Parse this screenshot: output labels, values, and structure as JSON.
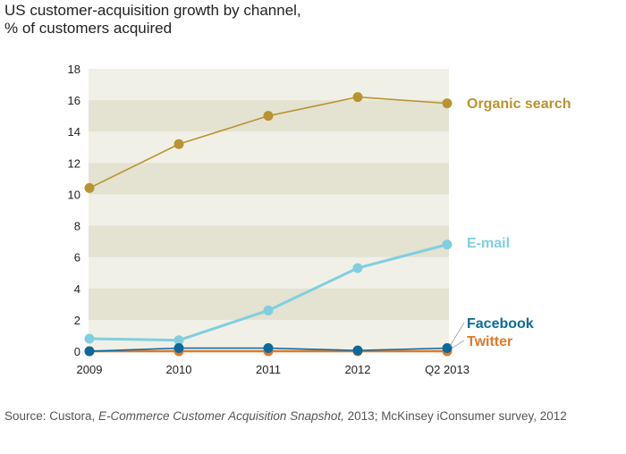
{
  "title_line1": "US customer-acquisition growth by channel,",
  "title_line2": "% of customers acquired",
  "source": {
    "prefix": "Source: Custora, ",
    "italic": "E-Commerce Customer Acquisition Snapshot,",
    "suffix": " 2013; McKinsey iConsumer survey, 2012"
  },
  "chart_data": {
    "type": "line",
    "title": "US customer-acquisition growth by channel, % of customers acquired",
    "categories": [
      "2009",
      "2010",
      "2011",
      "2012",
      "Q2 2013"
    ],
    "ylim": [
      0,
      18
    ],
    "yticks": [
      0,
      2,
      4,
      6,
      8,
      10,
      12,
      14,
      16,
      18
    ],
    "grid": "alternating horizontal bands",
    "legend": "direct labels at right",
    "series": [
      {
        "name": "Organic search",
        "color": "#b8932f",
        "values": [
          10.4,
          13.2,
          15.0,
          16.2,
          15.8
        ]
      },
      {
        "name": "E-mail",
        "color": "#7fcfe0",
        "values": [
          0.8,
          0.7,
          2.6,
          5.3,
          6.8
        ]
      },
      {
        "name": "Twitter",
        "color": "#e0792a",
        "values": [
          0,
          0,
          0,
          0,
          0
        ]
      },
      {
        "name": "Facebook",
        "color": "#0b6a9b",
        "values": [
          0,
          0.2,
          0.2,
          0.05,
          0.2
        ]
      }
    ]
  }
}
